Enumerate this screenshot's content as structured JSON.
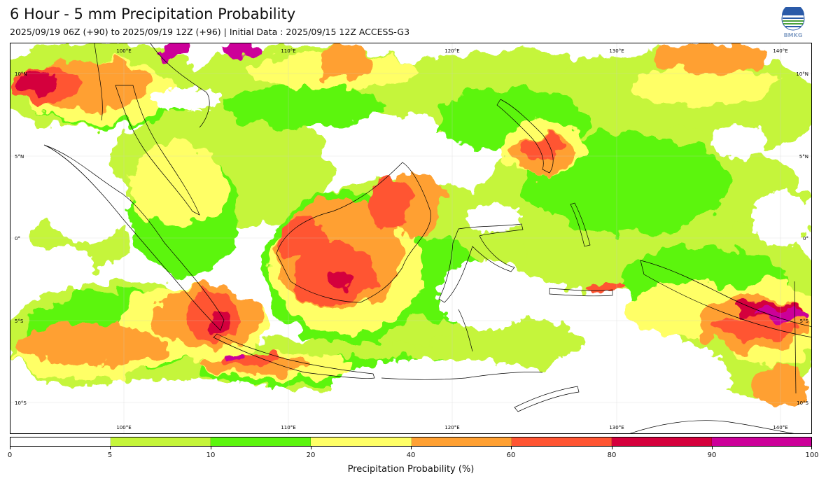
{
  "title": "6 Hour - 5 mm Precipitation Probability",
  "subtitle": "2025/09/19 06Z (+90) to 2025/09/19 12Z (+96) | Initial Data : 2025/09/15 12Z ACCESS-G3",
  "logo_text": "BMKG",
  "map": {
    "lon_labels_top": [
      "100°E",
      "110°E",
      "120°E",
      "130°E",
      "140°E"
    ],
    "lon_labels_bottom": [
      "100°E",
      "110°E",
      "120°E",
      "130°E",
      "140°E"
    ],
    "lat_labels_left": [
      "10°N",
      "5°N",
      "0°",
      "5°S",
      "10°S"
    ],
    "lat_labels_right": [
      "10°N",
      "5°N",
      "0°",
      "5°S",
      "10°S"
    ]
  },
  "colorbar": {
    "label": "Precipitation Probability (%)",
    "ticks": [
      "0",
      "5",
      "10",
      "20",
      "40",
      "60",
      "80",
      "90",
      "100"
    ],
    "colors": [
      "#ffffff",
      "#c5f53a",
      "#5cf50e",
      "#ffff66",
      "#ffa033",
      "#ff5533",
      "#d4003c",
      "#cc0099"
    ]
  }
}
